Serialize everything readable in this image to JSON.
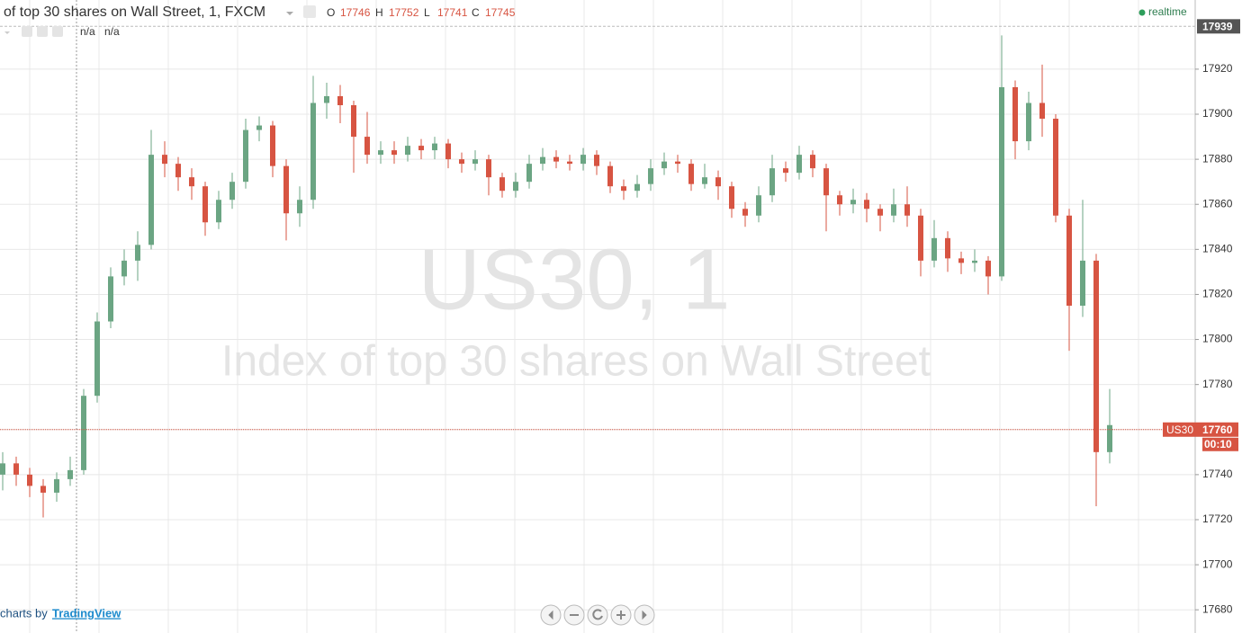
{
  "chart_data": {
    "type": "candlestick",
    "symbol_description": "of top 30 shares on Wall Street, 1, FXCM",
    "legend_ohlc": {
      "labels": [
        "O",
        "H",
        "L",
        "C"
      ],
      "values": [
        17746,
        17752,
        17741,
        17745
      ]
    },
    "status": "realtime",
    "indicator_values": [
      "n/a",
      "n/a"
    ],
    "watermark": {
      "symbol": "US30, 1",
      "description": "Index of top 30 shares on Wall Street"
    },
    "attribution": {
      "prefix": "charts by",
      "brand": "TradingView"
    },
    "up_color": "#6ba583",
    "down_color": "#d75442",
    "grid": true,
    "ylim": [
      17669.7,
      17950.7
    ],
    "yticks": [
      17680,
      17700,
      17720,
      17740,
      17760,
      17780,
      17800,
      17820,
      17840,
      17860,
      17880,
      17900,
      17920
    ],
    "high_line": 17939,
    "price_line": {
      "name": "US30",
      "value": 17760,
      "countdown": "00:10"
    },
    "open": [
      17740,
      17745,
      17740,
      17735,
      17732,
      17738,
      17742,
      17775,
      17808,
      17828,
      17835,
      17842,
      17882,
      17878,
      17872,
      17868,
      17852,
      17862,
      17870,
      17893,
      17895,
      17877,
      17856,
      17862,
      17905,
      17908,
      17904,
      17890,
      17882,
      17884,
      17882,
      17886,
      17884,
      17887,
      17880,
      17878,
      17880,
      17872,
      17866,
      17870,
      17878,
      17881,
      17879,
      17878,
      17882,
      17877,
      17868,
      17866,
      17869,
      17876,
      17879,
      17878,
      17869,
      17872,
      17868,
      17858,
      17855,
      17864,
      17876,
      17874,
      17882,
      17876,
      17864,
      17860,
      17862,
      17858,
      17855,
      17860,
      17855,
      17835,
      17845,
      17836,
      17834,
      17835,
      17828,
      17912,
      17888,
      17905,
      17898,
      17855,
      17815,
      17835,
      17750
    ],
    "high": [
      17750,
      17748,
      17743,
      17738,
      17741,
      17748,
      17778,
      17812,
      17832,
      17840,
      17848,
      17893,
      17888,
      17881,
      17876,
      17870,
      17866,
      17874,
      17898,
      17899,
      17897,
      17880,
      17868,
      17917,
      17914,
      17913,
      17906,
      17901,
      17888,
      17888,
      17890,
      17889,
      17890,
      17889,
      17883,
      17884,
      17882,
      17874,
      17874,
      17882,
      17885,
      17884,
      17882,
      17885,
      17884,
      17879,
      17871,
      17873,
      17880,
      17883,
      17882,
      17880,
      17878,
      17875,
      17870,
      17861,
      17868,
      17882,
      17879,
      17886,
      17884,
      17878,
      17866,
      17867,
      17865,
      17860,
      17867,
      17868,
      17858,
      17853,
      17848,
      17839,
      17840,
      17837,
      17935,
      17915,
      17910,
      17922,
      17900,
      17858,
      17862,
      17838,
      17778
    ],
    "low": [
      17733,
      17735,
      17730,
      17721,
      17728,
      17735,
      17740,
      17772,
      17805,
      17824,
      17826,
      17840,
      17872,
      17866,
      17862,
      17846,
      17849,
      17858,
      17867,
      17888,
      17872,
      17844,
      17850,
      17858,
      17898,
      17896,
      17874,
      17878,
      17878,
      17878,
      17879,
      17880,
      17880,
      17876,
      17874,
      17875,
      17864,
      17863,
      17863,
      17867,
      17875,
      17876,
      17875,
      17875,
      17873,
      17865,
      17862,
      17863,
      17866,
      17873,
      17874,
      17866,
      17867,
      17862,
      17854,
      17850,
      17852,
      17861,
      17870,
      17871,
      17872,
      17848,
      17855,
      17856,
      17852,
      17848,
      17852,
      17850,
      17828,
      17832,
      17830,
      17829,
      17830,
      17820,
      17826,
      17880,
      17884,
      17890,
      17852,
      17795,
      17810,
      17726,
      17745
    ],
    "close": [
      17745,
      17740,
      17735,
      17732,
      17738,
      17742,
      17775,
      17808,
      17828,
      17835,
      17842,
      17882,
      17878,
      17872,
      17868,
      17852,
      17862,
      17870,
      17893,
      17895,
      17877,
      17856,
      17862,
      17905,
      17908,
      17904,
      17890,
      17882,
      17884,
      17882,
      17886,
      17884,
      17887,
      17880,
      17878,
      17880,
      17872,
      17866,
      17870,
      17878,
      17881,
      17879,
      17878,
      17882,
      17877,
      17868,
      17866,
      17869,
      17876,
      17879,
      17878,
      17869,
      17872,
      17868,
      17858,
      17855,
      17864,
      17876,
      17874,
      17882,
      17876,
      17864,
      17860,
      17862,
      17858,
      17855,
      17860,
      17855,
      17835,
      17845,
      17836,
      17834,
      17835,
      17828,
      17912,
      17888,
      17905,
      17898,
      17855,
      17815,
      17835,
      17750,
      17762
    ]
  }
}
